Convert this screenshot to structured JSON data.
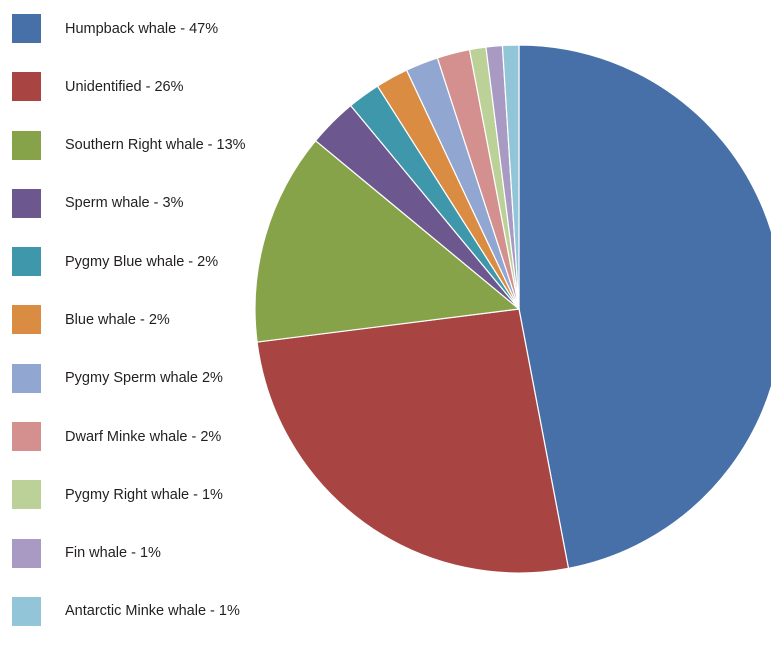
{
  "chart_data": {
    "type": "pie",
    "title": "",
    "legend_position": "left",
    "slices": [
      {
        "label": "Humpback whale - 47%",
        "value": 47,
        "color": "#4670a7"
      },
      {
        "label": "Unidentified - 26%",
        "value": 26,
        "color": "#a84543"
      },
      {
        "label": "Southern Right whale - 13%",
        "value": 13,
        "color": "#87a34a"
      },
      {
        "label": "Sperm whale - 3%",
        "value": 3,
        "color": "#6c578e"
      },
      {
        "label": "Pygmy Blue whale - 2%",
        "value": 2,
        "color": "#3f97ab"
      },
      {
        "label": "Blue whale - 2%",
        "value": 2,
        "color": "#d98c42"
      },
      {
        "label": "Pygmy Sperm whale 2%",
        "value": 2,
        "color": "#91a7d1"
      },
      {
        "label": "Dwarf Minke whale - 2%",
        "value": 2,
        "color": "#d3908e"
      },
      {
        "label": "Pygmy Right whale - 1%",
        "value": 1,
        "color": "#bcd198"
      },
      {
        "label": "Fin whale - 1%",
        "value": 1,
        "color": "#a89ac2"
      },
      {
        "label": "Antarctic Minke whale - 1%",
        "value": 1,
        "color": "#92c5d8"
      }
    ]
  }
}
